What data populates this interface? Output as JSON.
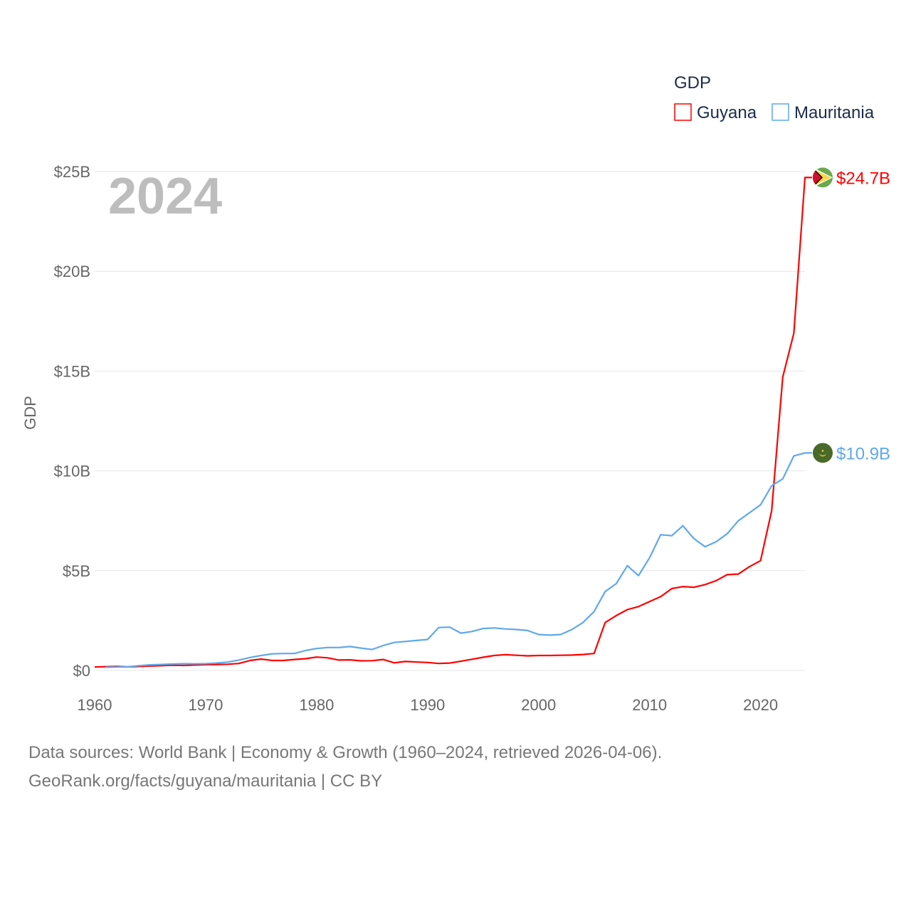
{
  "chart_data": {
    "type": "line",
    "title": "",
    "ylabel": "GDP",
    "xlabel": "",
    "year_watermark": "2024",
    "legend": {
      "title": "GDP",
      "placement": "top-right"
    },
    "xlim": [
      1960,
      2024
    ],
    "ylim": [
      0,
      25
    ],
    "x_ticks": [
      1960,
      1970,
      1980,
      1990,
      2000,
      2010,
      2020
    ],
    "x_tick_labels": [
      "1960",
      "1970",
      "1980",
      "1990",
      "2000",
      "2010",
      "2020"
    ],
    "y_ticks": [
      0,
      5,
      10,
      15,
      20,
      25
    ],
    "y_tick_labels": [
      "$0",
      "$5B",
      "$10B",
      "$15B",
      "$20B",
      "$25B"
    ],
    "grid": true,
    "x": [
      1960,
      1961,
      1962,
      1963,
      1964,
      1965,
      1966,
      1967,
      1968,
      1969,
      1970,
      1971,
      1972,
      1973,
      1974,
      1975,
      1976,
      1977,
      1978,
      1979,
      1980,
      1981,
      1982,
      1983,
      1984,
      1985,
      1986,
      1987,
      1988,
      1989,
      1990,
      1991,
      1992,
      1993,
      1994,
      1995,
      1996,
      1997,
      1998,
      1999,
      2000,
      2001,
      2002,
      2003,
      2004,
      2005,
      2006,
      2007,
      2008,
      2009,
      2010,
      2011,
      2012,
      2013,
      2014,
      2015,
      2016,
      2017,
      2018,
      2019,
      2020,
      2021,
      2022,
      2023,
      2024
    ],
    "series": [
      {
        "name": "Guyana",
        "color": "#ff0000",
        "end_label": "$24.7B",
        "flag": "guyana-flag",
        "values": [
          0.17,
          0.19,
          0.2,
          0.18,
          0.2,
          0.22,
          0.24,
          0.26,
          0.25,
          0.27,
          0.29,
          0.3,
          0.31,
          0.35,
          0.5,
          0.57,
          0.5,
          0.5,
          0.55,
          0.59,
          0.67,
          0.63,
          0.52,
          0.53,
          0.48,
          0.49,
          0.55,
          0.38,
          0.45,
          0.42,
          0.4,
          0.35,
          0.37,
          0.46,
          0.56,
          0.66,
          0.75,
          0.79,
          0.76,
          0.73,
          0.75,
          0.75,
          0.76,
          0.77,
          0.8,
          0.85,
          2.4,
          2.75,
          3.05,
          3.2,
          3.45,
          3.7,
          4.1,
          4.2,
          4.17,
          4.3,
          4.5,
          4.8,
          4.83,
          5.2,
          5.5,
          8.0,
          14.7,
          16.9,
          24.7
        ]
      },
      {
        "name": "Mauritania",
        "color": "#5fa8eb",
        "end_label": "$10.9B",
        "flag": "mauritania-flag",
        "values": [
          null,
          0.16,
          0.17,
          0.18,
          0.24,
          0.28,
          0.3,
          0.32,
          0.34,
          0.33,
          0.34,
          0.37,
          0.42,
          0.52,
          0.65,
          0.75,
          0.83,
          0.85,
          0.85,
          1.0,
          1.1,
          1.15,
          1.15,
          1.2,
          1.12,
          1.05,
          1.25,
          1.4,
          1.45,
          1.5,
          1.55,
          2.15,
          2.17,
          1.87,
          1.95,
          2.1,
          2.13,
          2.08,
          2.05,
          2.0,
          1.8,
          1.77,
          1.8,
          2.05,
          2.4,
          2.95,
          3.95,
          4.35,
          5.25,
          4.75,
          5.65,
          6.8,
          6.75,
          7.25,
          6.6,
          6.2,
          6.45,
          6.85,
          7.5,
          7.9,
          8.3,
          9.25,
          9.6,
          10.75,
          10.9
        ]
      }
    ]
  },
  "footer": {
    "line1": "Data sources: World Bank | Economy & Growth (1960–2024, retrieved 2026-04-06).",
    "line2": "GeoRank.org/facts/guyana/mauritania | CC BY"
  }
}
